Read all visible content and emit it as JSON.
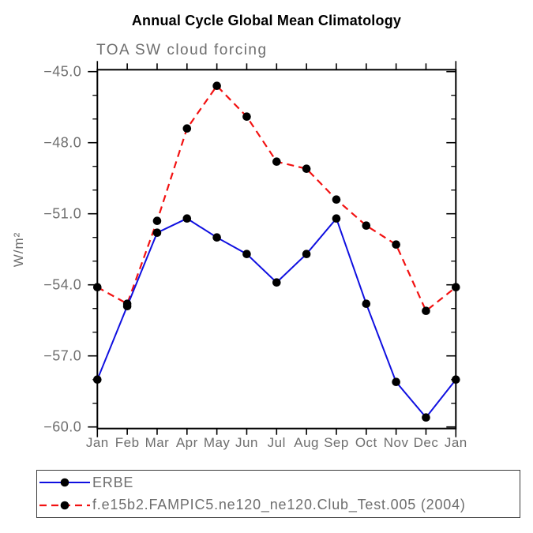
{
  "chart_data": {
    "type": "line",
    "title": "Annual Cycle Global Mean Climatology",
    "subtitle": "TOA SW cloud forcing",
    "ylabel": "W/m²",
    "ylim": [
      -60.0,
      -45.0
    ],
    "y_major_ticks": [
      -45.0,
      -48.0,
      -51.0,
      -54.0,
      -57.0,
      -60.0
    ],
    "y_minor_step": 1.0,
    "grid": false,
    "legend_position": "bottom-left-box",
    "categories": [
      "Jan",
      "Feb",
      "Mar",
      "Apr",
      "May",
      "Jun",
      "Jul",
      "Aug",
      "Sep",
      "Oct",
      "Nov",
      "Dec",
      "Jan"
    ],
    "series": [
      {
        "name": "ERBE",
        "color": "#0f0fe0",
        "line_style": "solid",
        "marker": "filled-circle",
        "marker_color": "#000000",
        "values": [
          -58.0,
          -54.9,
          -51.8,
          -51.2,
          -52.0,
          -52.7,
          -53.9,
          -52.7,
          -51.2,
          -54.8,
          -58.1,
          -59.6,
          -58.0
        ]
      },
      {
        "name": "f.e15b2.FAMPIC5.ne120_ne120.Club_Test.005 (2004)",
        "color": "#f21111",
        "line_style": "dashed",
        "marker": "filled-circle",
        "marker_color": "#000000",
        "values": [
          -54.1,
          -54.8,
          -51.3,
          -47.4,
          -45.6,
          -46.9,
          -48.8,
          -49.1,
          -50.4,
          -51.5,
          -52.3,
          -55.1,
          -54.1
        ]
      }
    ],
    "text_color": "#6e6e6e",
    "axis_color": "#000000"
  }
}
